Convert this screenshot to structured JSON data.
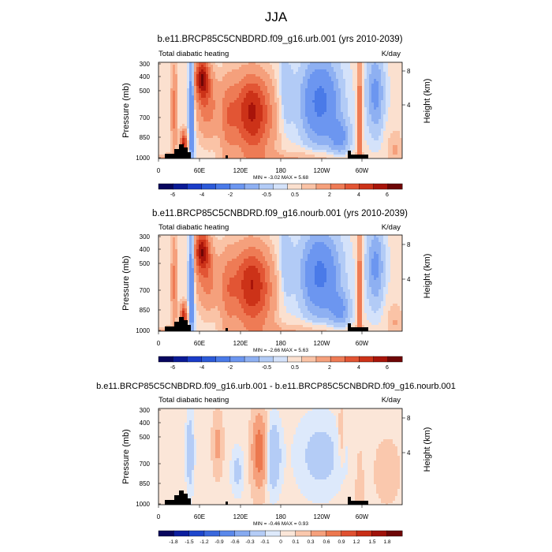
{
  "figure": {
    "title": "JJA"
  },
  "chart_data": [
    {
      "type": "heatmap",
      "title": "b.e11.BRCP85C5CNBDRD.f09_g16.urb.001 (yrs 2010-2039)",
      "left_string": "Total diabatic heating",
      "right_string": "K/day",
      "ylabel": "Pressure (mb)",
      "ylabel_right": "Height (km)",
      "x_ticks": [
        "0",
        "60E",
        "120E",
        "180",
        "120W",
        "60W"
      ],
      "y_ticks": [
        "300",
        "400",
        "500",
        "700",
        "850",
        "1000"
      ],
      "y_ticks_right": [
        "8",
        "4"
      ],
      "min_max": "MIN = -3.02  MAX = 5.68",
      "min": -3.02,
      "max": 5.68,
      "colorbar_labels": [
        "-6",
        "-4",
        "-2",
        "-0.5",
        "0.5",
        "2",
        "4",
        "6"
      ]
    },
    {
      "type": "heatmap",
      "title": "b.e11.BRCP85C5CNBDRD.f09_g16.nourb.001 (yrs 2010-2039)",
      "left_string": "Total diabatic heating",
      "right_string": "K/day",
      "ylabel": "Pressure (mb)",
      "ylabel_right": "Height (km)",
      "x_ticks": [
        "0",
        "60E",
        "120E",
        "180",
        "120W",
        "60W"
      ],
      "y_ticks": [
        "300",
        "400",
        "500",
        "700",
        "850",
        "1000"
      ],
      "y_ticks_right": [
        "8",
        "4"
      ],
      "min_max": "MIN = -2.66  MAX = 5.63",
      "min": -2.66,
      "max": 5.63,
      "colorbar_labels": [
        "-6",
        "-4",
        "-2",
        "-0.5",
        "0.5",
        "2",
        "4",
        "6"
      ]
    },
    {
      "type": "heatmap",
      "title": "b.e11.BRCP85C5CNBDRD.f09_g16.urb.001 - b.e11.BRCP85C5CNBDRD.f09_g16.nourb.001",
      "left_string": "Total diabatic heating",
      "right_string": "K/day",
      "ylabel": "Pressure (mb)",
      "ylabel_right": "Height (km)",
      "x_ticks": [
        "0",
        "60E",
        "120E",
        "180",
        "120W",
        "60W"
      ],
      "y_ticks": [
        "300",
        "400",
        "500",
        "700",
        "850",
        "1000"
      ],
      "y_ticks_right": [
        "8",
        "4"
      ],
      "min_max": "MIN = -0.46  MAX = 0.93",
      "min": -0.46,
      "max": 0.93,
      "colorbar_labels": [
        "-1.8",
        "-1.5",
        "-1.2",
        "-0.9",
        "-0.6",
        "-0.3",
        "-0.1",
        "0",
        "0.1",
        "0.3",
        "0.6",
        "0.9",
        "1.2",
        "1.5",
        "1.8"
      ]
    }
  ],
  "colors": {
    "full": [
      "#08065e",
      "#0a1a96",
      "#1a3cc8",
      "#2c5ad8",
      "#4a7ae8",
      "#6c96f0",
      "#8eb0f2",
      "#b2cbf6",
      "#d4e2fa",
      "#fbe0cf",
      "#fac3a6",
      "#f5a07c",
      "#ee7b55",
      "#e25534",
      "#cc3218",
      "#a8140a",
      "#6e0606"
    ],
    "diff": [
      "#08065e",
      "#0c1e9e",
      "#1e46cc",
      "#3a68dc",
      "#5a88ea",
      "#86aaf0",
      "#b4ccf6",
      "#dde9fb",
      "#fbe6d8",
      "#fac8ad",
      "#f5a07c",
      "#ec784e",
      "#df5030",
      "#c82e16",
      "#a0120a",
      "#6e0606"
    ]
  }
}
